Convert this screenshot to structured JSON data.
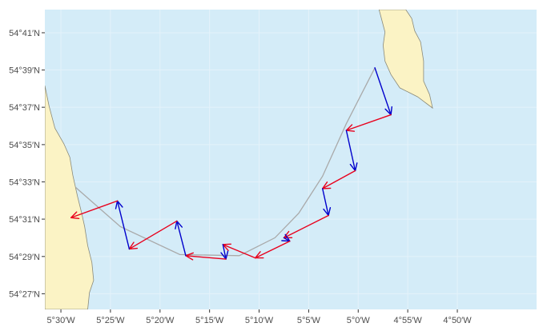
{
  "map": {
    "colors": {
      "sea": "#d4ecf8",
      "land": "#fbf3c5",
      "coast": "#8a8a7a",
      "gridline": "#e4f2fa",
      "track": "#a9a9a9",
      "east_leg": "#e8001c",
      "north_leg": "#0000cc"
    },
    "x_axis": {
      "lon_range": [
        -5.527,
        -4.7
      ],
      "ticks": [
        {
          "lon": -5.5,
          "label": "5°30′W"
        },
        {
          "lon": -5.4167,
          "label": "5°25′W"
        },
        {
          "lon": -5.3333,
          "label": "5°20′W"
        },
        {
          "lon": -5.25,
          "label": "5°15′W"
        },
        {
          "lon": -5.1667,
          "label": "5°10′W"
        },
        {
          "lon": -5.0833,
          "label": "5°5′W"
        },
        {
          "lon": -5.0,
          "label": "5°0′W"
        },
        {
          "lon": -4.9167,
          "label": "4°55′W"
        },
        {
          "lon": -4.8333,
          "label": "4°50′W"
        }
      ]
    },
    "y_axis": {
      "lat_range": [
        54.436,
        54.704
      ],
      "ticks": [
        {
          "lat": 54.45,
          "label": "54°27′N"
        },
        {
          "lat": 54.4833,
          "label": "54°29′N"
        },
        {
          "lat": 54.5167,
          "label": "54°31′N"
        },
        {
          "lat": 54.55,
          "label": "54°33′N"
        },
        {
          "lat": 54.5833,
          "label": "54°35′N"
        },
        {
          "lat": 54.6167,
          "label": "54°37′N"
        },
        {
          "lat": 54.65,
          "label": "54°39′N"
        },
        {
          "lat": 54.6833,
          "label": "54°41′N"
        }
      ]
    },
    "land_areas": [
      {
        "name": "west-coast",
        "coords": [
          [
            -5.527,
            54.636
          ],
          [
            -5.52,
            54.618
          ],
          [
            -5.51,
            54.598
          ],
          [
            -5.495,
            54.584
          ],
          [
            -5.485,
            54.572
          ],
          [
            -5.48,
            54.556
          ],
          [
            -5.472,
            54.537
          ],
          [
            -5.465,
            54.522
          ],
          [
            -5.46,
            54.51
          ],
          [
            -5.455,
            54.493
          ],
          [
            -5.448,
            54.478
          ],
          [
            -5.445,
            54.462
          ],
          [
            -5.452,
            54.451
          ],
          [
            -5.455,
            54.436
          ],
          [
            -5.527,
            54.436
          ]
        ]
      },
      {
        "name": "north-east-coast",
        "coords": [
          [
            -4.965,
            54.704
          ],
          [
            -4.96,
            54.694
          ],
          [
            -4.955,
            54.684
          ],
          [
            -4.958,
            54.672
          ],
          [
            -4.955,
            54.658
          ],
          [
            -4.945,
            54.646
          ],
          [
            -4.93,
            54.634
          ],
          [
            -4.915,
            54.63
          ],
          [
            -4.9,
            54.626
          ],
          [
            -4.885,
            54.62
          ],
          [
            -4.875,
            54.616
          ],
          [
            -4.88,
            54.628
          ],
          [
            -4.89,
            54.64
          ],
          [
            -4.89,
            54.658
          ],
          [
            -4.895,
            54.675
          ],
          [
            -4.905,
            54.685
          ],
          [
            -4.91,
            54.696
          ],
          [
            -4.92,
            54.704
          ]
        ]
      }
    ],
    "track": [
      [
        -4.972,
        54.652
      ],
      [
        -5.02,
        54.602
      ],
      [
        -5.06,
        54.555
      ],
      [
        -5.1,
        54.522
      ],
      [
        -5.14,
        54.5
      ],
      [
        -5.2,
        54.484
      ],
      [
        -5.3,
        54.485
      ],
      [
        -5.4,
        54.51
      ],
      [
        -5.475,
        54.545
      ]
    ],
    "route_vectors": [
      {
        "kind": "north-leg",
        "from": [
          -4.972,
          54.652
        ],
        "to": [
          -4.945,
          54.61
        ]
      },
      {
        "kind": "east-leg",
        "from": [
          -4.945,
          54.61
        ],
        "to": [
          -5.02,
          54.596
        ]
      },
      {
        "kind": "north-leg",
        "from": [
          -5.02,
          54.596
        ],
        "to": [
          -5.005,
          54.56
        ]
      },
      {
        "kind": "east-leg",
        "from": [
          -5.005,
          54.56
        ],
        "to": [
          -5.06,
          54.544
        ]
      },
      {
        "kind": "north-leg",
        "from": [
          -5.06,
          54.544
        ],
        "to": [
          -5.05,
          54.52
        ]
      },
      {
        "kind": "east-leg",
        "from": [
          -5.05,
          54.52
        ],
        "to": [
          -5.125,
          54.5
        ]
      },
      {
        "kind": "north-leg",
        "from": [
          -5.125,
          54.5
        ],
        "to": [
          -5.115,
          54.497
        ]
      },
      {
        "kind": "east-leg",
        "from": [
          -5.115,
          54.497
        ],
        "to": [
          -5.173,
          54.482
        ]
      },
      {
        "kind": "east-leg",
        "from": [
          -5.173,
          54.482
        ],
        "to": [
          -5.2275,
          54.494
        ]
      },
      {
        "kind": "north-leg",
        "from": [
          -5.2275,
          54.494
        ],
        "to": [
          -5.2225,
          54.481
        ]
      },
      {
        "kind": "east-leg",
        "from": [
          -5.2225,
          54.481
        ],
        "to": [
          -5.29,
          54.484
        ]
      },
      {
        "kind": "north-leg",
        "from": [
          -5.29,
          54.484
        ],
        "to": [
          -5.305,
          54.515
        ]
      },
      {
        "kind": "east-leg",
        "from": [
          -5.305,
          54.515
        ],
        "to": [
          -5.385,
          54.49
        ]
      },
      {
        "kind": "north-leg",
        "from": [
          -5.385,
          54.49
        ],
        "to": [
          -5.405,
          54.533
        ]
      },
      {
        "kind": "east-leg",
        "from": [
          -5.405,
          54.533
        ],
        "to": [
          -5.483,
          54.518
        ]
      }
    ]
  }
}
